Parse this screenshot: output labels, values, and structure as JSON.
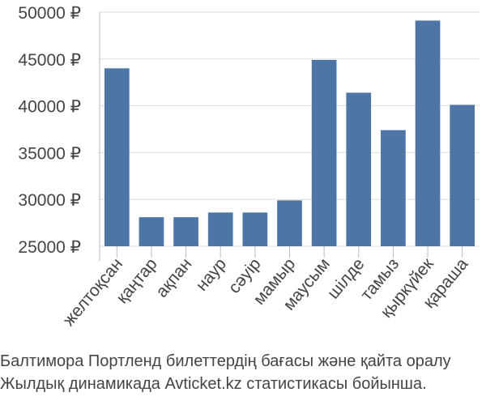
{
  "chart_data": {
    "type": "bar",
    "categories": [
      "желтоқсан",
      "қаңтар",
      "ақпан",
      "наур",
      "сәуір",
      "мамыр",
      "маусым",
      "шілде",
      "тамыз",
      "қыркүйек",
      "қараша"
    ],
    "values": [
      44000,
      28100,
      28100,
      28600,
      28600,
      29900,
      44900,
      41400,
      37400,
      49100,
      40100
    ],
    "ylim": [
      25000,
      50000
    ],
    "yticks": [
      25000,
      30000,
      35000,
      40000,
      45000,
      50000
    ],
    "ytick_labels": [
      "25000 ₽",
      "30000 ₽",
      "35000 ₽",
      "40000 ₽",
      "45000 ₽",
      "50000 ₽"
    ],
    "grid": true,
    "bar_color": "#4d76a6",
    "title": "",
    "xlabel": "",
    "ylabel": ""
  },
  "caption": {
    "line1": "Балтимора Портленд билеттердің бағасы және қайта оралу",
    "line2": "Жылдық динамикада Avticket.kz статистикасы бойынша."
  }
}
